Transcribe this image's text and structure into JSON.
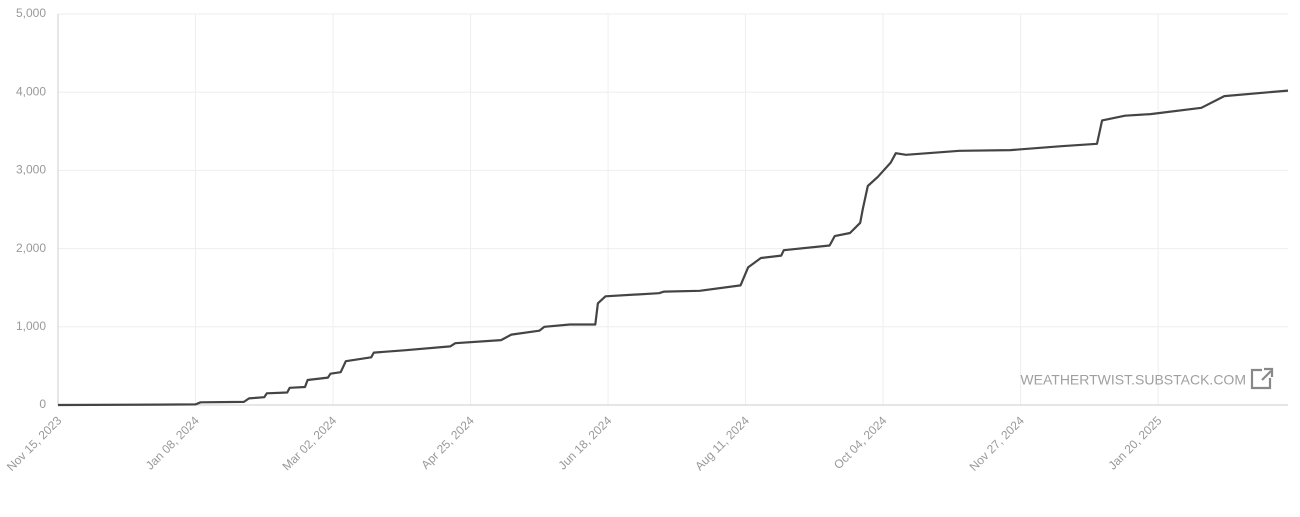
{
  "chart_data": {
    "type": "line",
    "x": [
      "2023-11-15",
      "2023-12-25",
      "2024-01-08",
      "2024-01-10",
      "2024-01-27",
      "2024-01-29",
      "2024-02-04",
      "2024-02-05",
      "2024-02-13",
      "2024-02-14",
      "2024-02-20",
      "2024-02-21",
      "2024-02-29",
      "2024-03-01",
      "2024-03-05",
      "2024-03-07",
      "2024-03-17",
      "2024-03-18",
      "2024-03-30",
      "2024-04-17",
      "2024-04-19",
      "2024-05-07",
      "2024-05-11",
      "2024-05-22",
      "2024-05-24",
      "2024-06-03",
      "2024-06-13",
      "2024-06-14",
      "2024-06-17",
      "2024-07-08",
      "2024-07-10",
      "2024-07-24",
      "2024-08-09",
      "2024-08-12",
      "2024-08-17",
      "2024-08-25",
      "2024-08-26",
      "2024-09-13",
      "2024-09-15",
      "2024-09-21",
      "2024-09-25",
      "2024-09-26",
      "2024-09-28",
      "2024-10-02",
      "2024-10-07",
      "2024-10-09",
      "2024-10-13",
      "2024-11-03",
      "2024-11-23",
      "2024-12-13",
      "2024-12-27",
      "2024-12-29",
      "2025-01-07",
      "2025-01-17",
      "2025-02-06",
      "2025-02-15",
      "2025-03-12"
    ],
    "values": [
      0,
      5,
      8,
      35,
      40,
      85,
      100,
      150,
      160,
      220,
      230,
      320,
      350,
      400,
      420,
      560,
      610,
      670,
      700,
      750,
      790,
      830,
      900,
      950,
      1000,
      1030,
      1030,
      1300,
      1390,
      1430,
      1450,
      1460,
      1530,
      1760,
      1880,
      1910,
      1980,
      2040,
      2160,
      2200,
      2330,
      2500,
      2800,
      2920,
      3100,
      3220,
      3200,
      3250,
      3260,
      3310,
      3340,
      3640,
      3700,
      3720,
      3800,
      3950,
      4020
    ],
    "color": "#444444",
    "xlim": [
      "2023-11-15",
      "2025-03-12"
    ],
    "xticks": [
      {
        "value": "2023-11-15",
        "label": "Nov 15, 2023"
      },
      {
        "value": "2024-01-08",
        "label": "Jan 08, 2024"
      },
      {
        "value": "2024-03-02",
        "label": "Mar 02, 2024"
      },
      {
        "value": "2024-04-25",
        "label": "Apr 25, 2024"
      },
      {
        "value": "2024-06-18",
        "label": "Jun 18, 2024"
      },
      {
        "value": "2024-08-11",
        "label": "Aug 11, 2024"
      },
      {
        "value": "2024-10-04",
        "label": "Oct 04, 2024"
      },
      {
        "value": "2024-11-27",
        "label": "Nov 27, 2024"
      },
      {
        "value": "2025-01-20",
        "label": "Jan 20, 2025"
      }
    ],
    "ylim": [
      0,
      5000
    ],
    "yticks": [
      0,
      {
        "value": 1000,
        "label": "1,000"
      },
      {
        "value": 2000,
        "label": "2,000"
      },
      {
        "value": 3000,
        "label": "3,000"
      },
      {
        "value": 4000,
        "label": "4,000"
      },
      {
        "value": 5000,
        "label": "5,000"
      }
    ],
    "grid": true,
    "watermark": "WEATHERTWIST.SUBSTACK.COM"
  }
}
